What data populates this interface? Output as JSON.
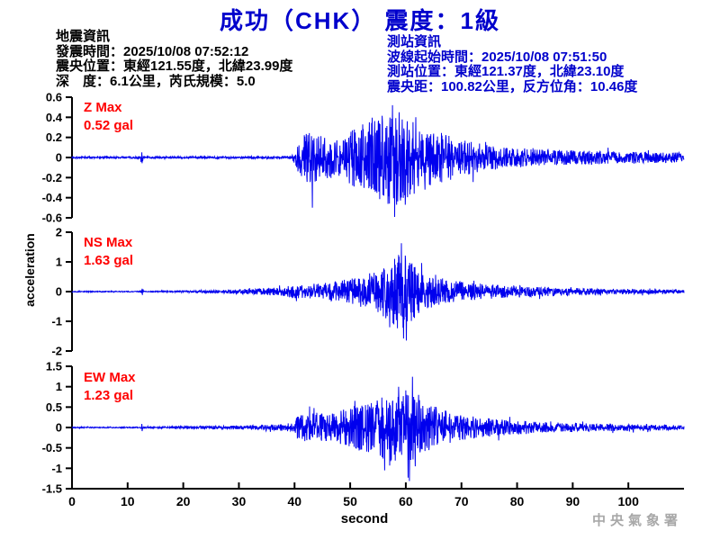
{
  "title": "成功（CHK） 震度：1級",
  "info_left": {
    "lines": [
      "地震資訊",
      "發震時間：2025/10/08 07:52:12",
      "震央位置：東經121.55度，北緯23.99度",
      "深　度：6.1公里，芮氏規模：5.0"
    ]
  },
  "info_right": {
    "lines": [
      "測站資訊",
      "波線起始時間：2025/10/08 07:51:50",
      "測站位置：東經121.37度，北緯23.10度",
      "震央距：100.82公里，反方位角：10.46度"
    ]
  },
  "y_axis_label": "acceleration",
  "x_axis_label": "second",
  "watermark": "中央氣象署",
  "colors": {
    "title_blue": "#0000cc",
    "waveform_blue": "#0000ee",
    "label_red": "#ff0000",
    "axis_black": "#000000",
    "watermark_gray": "#a8a8a8"
  },
  "chart_data": {
    "type": "line",
    "title": "成功（CHK） 震度：1級",
    "xlabel": "second",
    "ylabel": "acceleration",
    "unit": "gal",
    "x_range": [
      0,
      110
    ],
    "x_ticks": [
      0,
      10,
      20,
      30,
      40,
      50,
      60,
      70,
      80,
      90,
      100
    ],
    "legend_position": "none",
    "grid": false,
    "channels": [
      {
        "name": "Z",
        "label": "Z Max",
        "max_gal": 0.52,
        "max_text": "0.52 gal",
        "ylim": [
          -0.6,
          0.6
        ],
        "y_ticks": [
          "0.6",
          "0.4",
          "0.2",
          "0",
          "-0.2",
          "-0.4",
          "-0.6"
        ],
        "onset_s": 40,
        "peak_s": 57.6,
        "seed": 7,
        "envelope": [
          [
            0,
            0.01
          ],
          [
            12.2,
            0.01
          ],
          [
            12.5,
            0.075
          ],
          [
            12.9,
            0.01
          ],
          [
            39.5,
            0.012
          ],
          [
            40.3,
            0.1
          ],
          [
            41,
            0.22
          ],
          [
            43,
            0.26
          ],
          [
            45,
            0.22
          ],
          [
            47,
            0.2
          ],
          [
            49,
            0.24
          ],
          [
            51,
            0.3
          ],
          [
            53,
            0.38
          ],
          [
            55,
            0.42
          ],
          [
            57,
            0.47
          ],
          [
            58.5,
            0.48
          ],
          [
            60,
            0.44
          ],
          [
            62,
            0.38
          ],
          [
            64,
            0.3
          ],
          [
            67,
            0.24
          ],
          [
            70,
            0.19
          ],
          [
            74,
            0.13
          ],
          [
            78,
            0.1
          ],
          [
            84,
            0.08
          ],
          [
            92,
            0.07
          ],
          [
            100,
            0.06
          ],
          [
            110,
            0.05
          ]
        ],
        "spikes": [
          [
            43.2,
            -0.5
          ],
          [
            57.6,
            0.52
          ],
          [
            59.9,
            -0.47
          ],
          [
            61.8,
            0.4
          ]
        ]
      },
      {
        "name": "NS",
        "label": "NS Max",
        "max_gal": 1.63,
        "max_text": "1.63 gal",
        "ylim": [
          -2,
          2
        ],
        "y_ticks": [
          "2",
          "1",
          "0",
          "-1",
          "-2"
        ],
        "onset_s": 40,
        "peak_s": 59.2,
        "seed": 13,
        "envelope": [
          [
            0,
            0.018
          ],
          [
            12.3,
            0.018
          ],
          [
            12.6,
            0.14
          ],
          [
            13,
            0.02
          ],
          [
            20,
            0.035
          ],
          [
            28,
            0.06
          ],
          [
            33,
            0.1
          ],
          [
            37,
            0.14
          ],
          [
            40,
            0.22
          ],
          [
            43,
            0.26
          ],
          [
            46,
            0.3
          ],
          [
            49,
            0.4
          ],
          [
            52,
            0.55
          ],
          [
            54,
            0.65
          ],
          [
            56,
            0.85
          ],
          [
            58,
            1.15
          ],
          [
            59.3,
            1.45
          ],
          [
            60.5,
            1.1
          ],
          [
            62,
            0.85
          ],
          [
            64,
            0.6
          ],
          [
            66,
            0.48
          ],
          [
            68,
            0.4
          ],
          [
            71,
            0.32
          ],
          [
            74,
            0.26
          ],
          [
            78,
            0.22
          ],
          [
            82,
            0.18
          ],
          [
            86,
            0.16
          ],
          [
            90,
            0.13
          ],
          [
            95,
            0.1
          ],
          [
            100,
            0.09
          ],
          [
            110,
            0.06
          ]
        ],
        "spikes": [
          [
            59.2,
            1.63
          ],
          [
            59.6,
            -1.58
          ],
          [
            57.1,
            -1.2
          ],
          [
            61.1,
            0.95
          ]
        ]
      },
      {
        "name": "EW",
        "label": "EW Max",
        "max_gal": 1.23,
        "max_text": "1.23 gal",
        "ylim": [
          -1.5,
          1.5
        ],
        "y_ticks": [
          "1.5",
          "1",
          "0.5",
          "0",
          "-0.5",
          "-1",
          "-1.5"
        ],
        "onset_s": 40.5,
        "peak_s": 60.4,
        "seed": 21,
        "envelope": [
          [
            0,
            0.015
          ],
          [
            12.3,
            0.015
          ],
          [
            12.6,
            0.11
          ],
          [
            13,
            0.016
          ],
          [
            20,
            0.03
          ],
          [
            30,
            0.05
          ],
          [
            36,
            0.07
          ],
          [
            39.5,
            0.1
          ],
          [
            40.5,
            0.28
          ],
          [
            42,
            0.34
          ],
          [
            44,
            0.36
          ],
          [
            46,
            0.32
          ],
          [
            48,
            0.4
          ],
          [
            50,
            0.52
          ],
          [
            52,
            0.62
          ],
          [
            54,
            0.72
          ],
          [
            56,
            0.78
          ],
          [
            58,
            0.85
          ],
          [
            59.5,
            0.95
          ],
          [
            61,
            0.85
          ],
          [
            63,
            0.62
          ],
          [
            65,
            0.55
          ],
          [
            67,
            0.42
          ],
          [
            69,
            0.34
          ],
          [
            72,
            0.28
          ],
          [
            75,
            0.23
          ],
          [
            79,
            0.18
          ],
          [
            84,
            0.14
          ],
          [
            90,
            0.11
          ],
          [
            96,
            0.09
          ],
          [
            102,
            0.08
          ],
          [
            110,
            0.06
          ]
        ],
        "spikes": [
          [
            60.4,
            -1.23
          ],
          [
            58.7,
            1.0
          ],
          [
            56.2,
            -1.05
          ],
          [
            62.3,
            0.8
          ]
        ]
      }
    ]
  }
}
